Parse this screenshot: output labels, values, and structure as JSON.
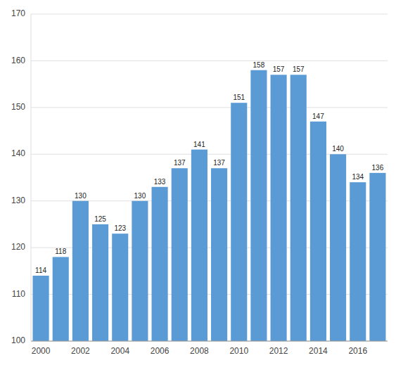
{
  "chart_data": {
    "type": "bar",
    "categories": [
      "2000",
      null,
      "2002",
      null,
      "2004",
      null,
      "2006",
      null,
      "2008",
      null,
      "2010",
      null,
      "2012",
      null,
      "2014",
      null,
      "2016",
      null
    ],
    "values": [
      114,
      118,
      130,
      125,
      123,
      130,
      133,
      137,
      141,
      137,
      151,
      158,
      157,
      157,
      147,
      140,
      134,
      136
    ],
    "color": "#5B9BD5",
    "ylim": [
      100,
      170
    ],
    "yticks": [
      100,
      110,
      120,
      130,
      140,
      150,
      160,
      170
    ],
    "grid": true,
    "data_labels": true
  }
}
